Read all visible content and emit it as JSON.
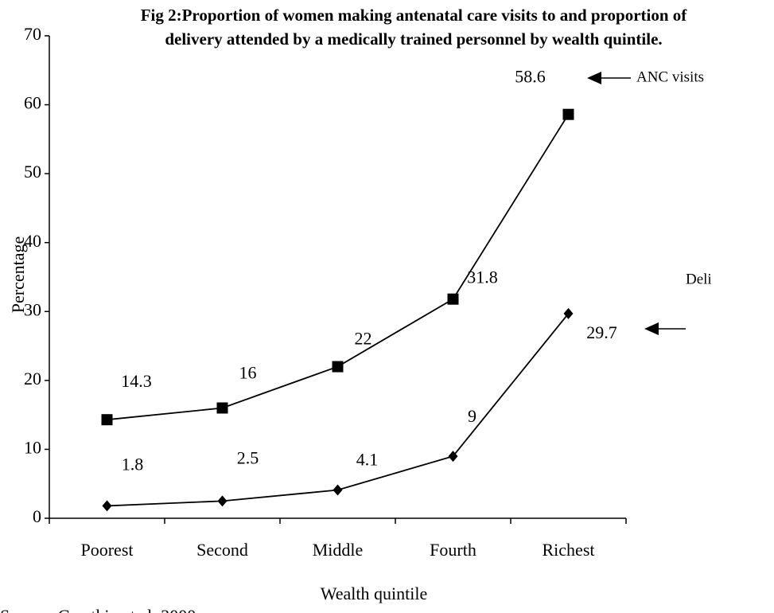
{
  "chart_data": {
    "type": "line",
    "title": "Fig 2:Proportion of women making antenatal care visits to and proportion of delivery attended by a medically trained personnel by wealth quintile.",
    "x_label": "Wealth quintile",
    "y_label": "Percentage",
    "source": "Source: Gwatkin et al. 2000",
    "categories": [
      "Poorest",
      "Second",
      "Middle",
      "Fourth",
      "Richest"
    ],
    "series": [
      {
        "name": "ANC visits",
        "color": "#000000",
        "marker": "square",
        "values": [
          14.3,
          16,
          22,
          31.8,
          58.6
        ]
      },
      {
        "name": "Deli",
        "color": "#000000",
        "marker": "diamond",
        "values": [
          1.8,
          2.5,
          4.1,
          9,
          29.7
        ]
      }
    ],
    "ylim": [
      0,
      70
    ],
    "yticks": [
      0,
      10,
      20,
      30,
      40,
      50,
      60,
      70
    ],
    "grid": false
  }
}
